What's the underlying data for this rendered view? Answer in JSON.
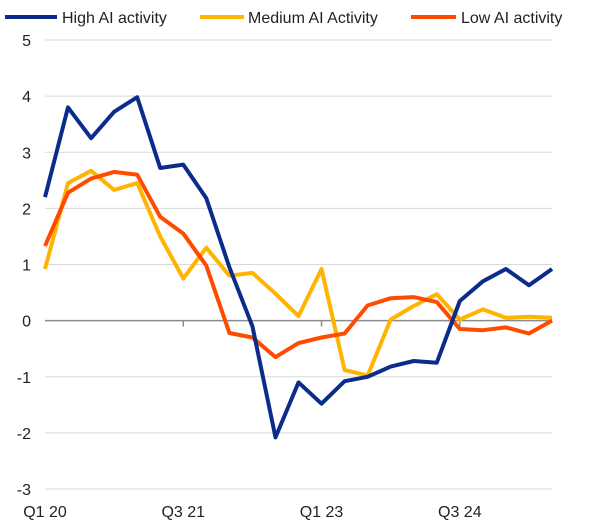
{
  "chart_data": {
    "type": "line",
    "title": "",
    "xlabel": "",
    "ylabel": "",
    "ylim": [
      -3,
      5
    ],
    "yticks": [
      5,
      4,
      3,
      2,
      1,
      0,
      -1,
      -2,
      -3
    ],
    "x": [
      "Q1 20",
      "Q2 20",
      "Q3 20",
      "Q4 20",
      "Q1 21",
      "Q2 21",
      "Q3 21",
      "Q4 21",
      "Q1 22",
      "Q2 22",
      "Q3 22",
      "Q4 22",
      "Q1 23",
      "Q2 23",
      "Q3 23",
      "Q4 23",
      "Q1 24",
      "Q2 24",
      "Q3 24",
      "Q4 24",
      "Q1 25",
      "Q2 25",
      "Q3 25"
    ],
    "xtick_labels": [
      "Q1 20",
      "Q3 21",
      "Q1 23",
      "Q3 24"
    ],
    "grid": "horizontal",
    "legend_position": "top",
    "series": [
      {
        "name": "High AI activity",
        "color": "#0c2c8c",
        "values": [
          2.2,
          3.8,
          3.25,
          3.72,
          3.98,
          2.72,
          2.78,
          2.18,
          0.95,
          -0.1,
          -2.08,
          -1.1,
          -1.48,
          -1.08,
          -1.0,
          -0.82,
          -0.72,
          -0.75,
          0.35,
          0.7,
          0.92,
          0.63,
          0.92
        ]
      },
      {
        "name": "Medium AI Activity",
        "color": "#ffb400",
        "values": [
          0.92,
          2.45,
          2.67,
          2.33,
          2.45,
          1.5,
          0.75,
          1.3,
          0.8,
          0.85,
          0.48,
          0.08,
          0.92,
          -0.88,
          -0.98,
          0.02,
          0.26,
          0.47,
          0.02,
          0.2,
          0.05,
          0.07,
          0.05
        ]
      },
      {
        "name": "Low AI activity",
        "color": "#ff4b00",
        "values": [
          1.33,
          2.28,
          2.53,
          2.65,
          2.6,
          1.85,
          1.55,
          0.98,
          -0.22,
          -0.3,
          -0.65,
          -0.4,
          -0.3,
          -0.23,
          0.27,
          0.4,
          0.42,
          0.33,
          -0.15,
          -0.17,
          -0.12,
          -0.23,
          0.0
        ]
      }
    ]
  }
}
